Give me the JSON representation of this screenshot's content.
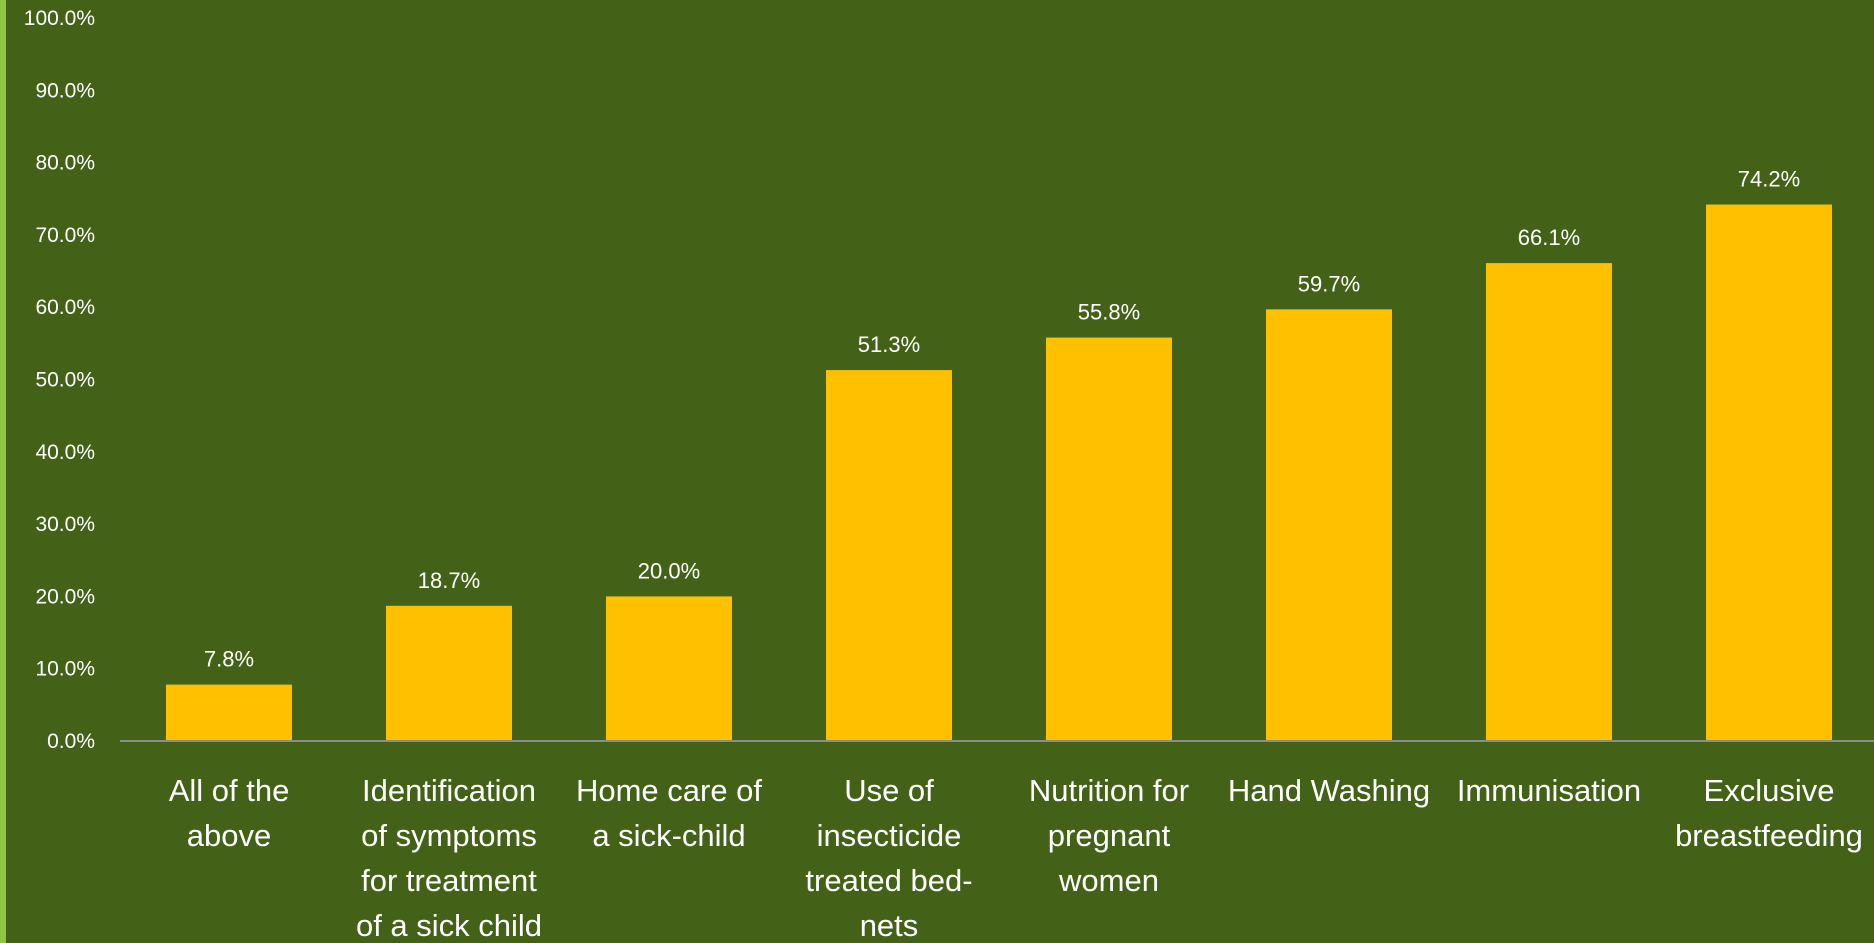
{
  "chart_data": {
    "type": "bar",
    "title": "",
    "xlabel": "",
    "ylabel": "",
    "ylim": [
      0,
      100
    ],
    "y_tick_format": "percent_1dp",
    "y_ticks": [
      "0.0%",
      "10.0%",
      "20.0%",
      "30.0%",
      "40.0%",
      "50.0%",
      "60.0%",
      "70.0%",
      "80.0%",
      "90.0%",
      "100.0%"
    ],
    "grid": false,
    "legend": "none",
    "categories": [
      "All of the above",
      "Identification of symptoms for treatment of a sick child",
      "Home care of a sick-child",
      "Use of insecticide treated bed-nets",
      "Nutrition for pregnant women",
      "Hand Washing",
      "Immunisation",
      "Exclusive breastfeeding"
    ],
    "category_label_lines": [
      [
        "All of the",
        "above"
      ],
      [
        "Identification",
        "of symptoms",
        "for treatment",
        "of a sick child"
      ],
      [
        "Home care of",
        "a sick-child"
      ],
      [
        "Use of",
        "insecticide",
        "treated bed-",
        "nets"
      ],
      [
        "Nutrition for",
        "pregnant",
        "women"
      ],
      [
        "Hand Washing"
      ],
      [
        "Immunisation"
      ],
      [
        "Exclusive",
        "breastfeeding"
      ]
    ],
    "values": [
      7.8,
      18.7,
      20.0,
      51.3,
      55.8,
      59.7,
      66.1,
      74.2
    ],
    "data_labels": [
      "7.8%",
      "18.7%",
      "20.0%",
      "51.3%",
      "55.8%",
      "59.7%",
      "66.1%",
      "74.2%"
    ],
    "colors": {
      "background": "#436217",
      "bar": "#ffc000",
      "axis": "#8a8f8f",
      "text": "#ffffff",
      "left_edge": "#8fc641"
    }
  }
}
